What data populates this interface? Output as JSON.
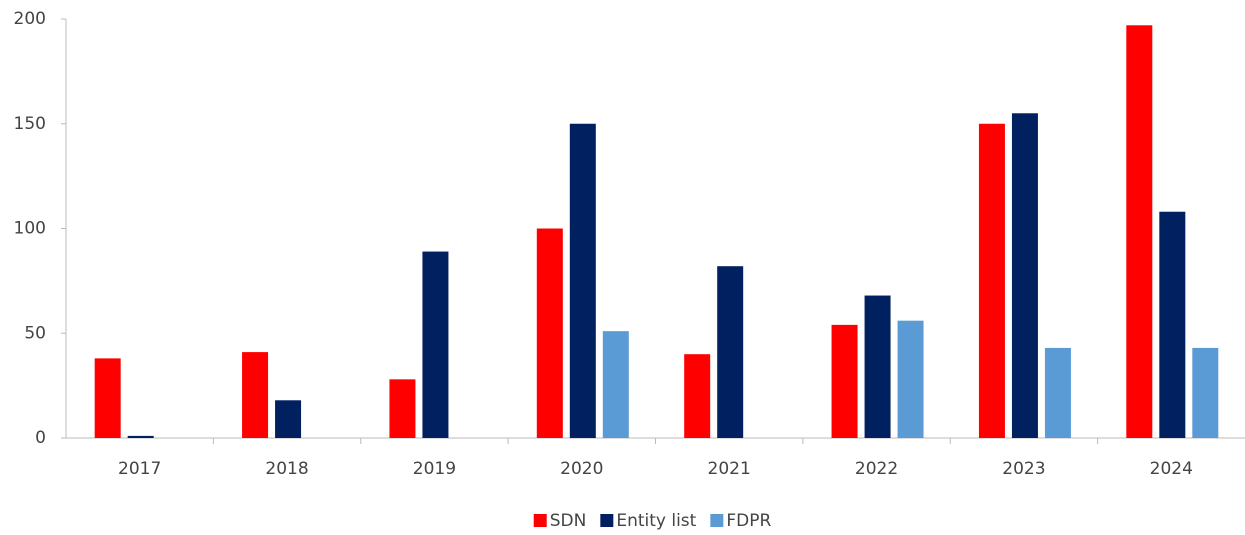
{
  "chart_data": {
    "type": "bar",
    "categories": [
      "2017",
      "2018",
      "2019",
      "2020",
      "2021",
      "2022",
      "2023",
      "2024"
    ],
    "series": [
      {
        "name": "SDN",
        "color": "#ff0000",
        "values": [
          38,
          41,
          28,
          100,
          40,
          54,
          150,
          197
        ]
      },
      {
        "name": "Entity list",
        "color": "#002060",
        "values": [
          1,
          18,
          89,
          150,
          82,
          68,
          155,
          108
        ]
      },
      {
        "name": "FDPR",
        "color": "#5b9bd5",
        "values": [
          null,
          null,
          null,
          51,
          null,
          56,
          43,
          43
        ]
      }
    ],
    "ylim": [
      0,
      200
    ],
    "yticks": [
      0,
      50,
      100,
      150,
      200
    ],
    "grid": false,
    "legend": "bottom"
  }
}
